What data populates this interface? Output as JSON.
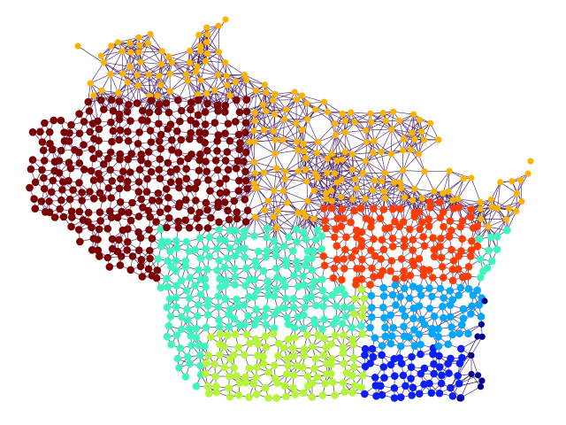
{
  "graph": {
    "edge_color": "#3a0f5e",
    "node_colors": {
      "northwest": "#7a0000",
      "north": "#ffb300",
      "northeast": "#ff3d00",
      "southwest": "#3ff5c0",
      "south_central": "#b5f53a",
      "east_central": "#00a6ff",
      "southeast": "#0a1ff5",
      "lakeshore": "#00008b"
    },
    "communities": [
      "northwest",
      "north",
      "northeast",
      "southwest",
      "south_central",
      "east_central",
      "southeast",
      "lakeshore"
    ]
  }
}
